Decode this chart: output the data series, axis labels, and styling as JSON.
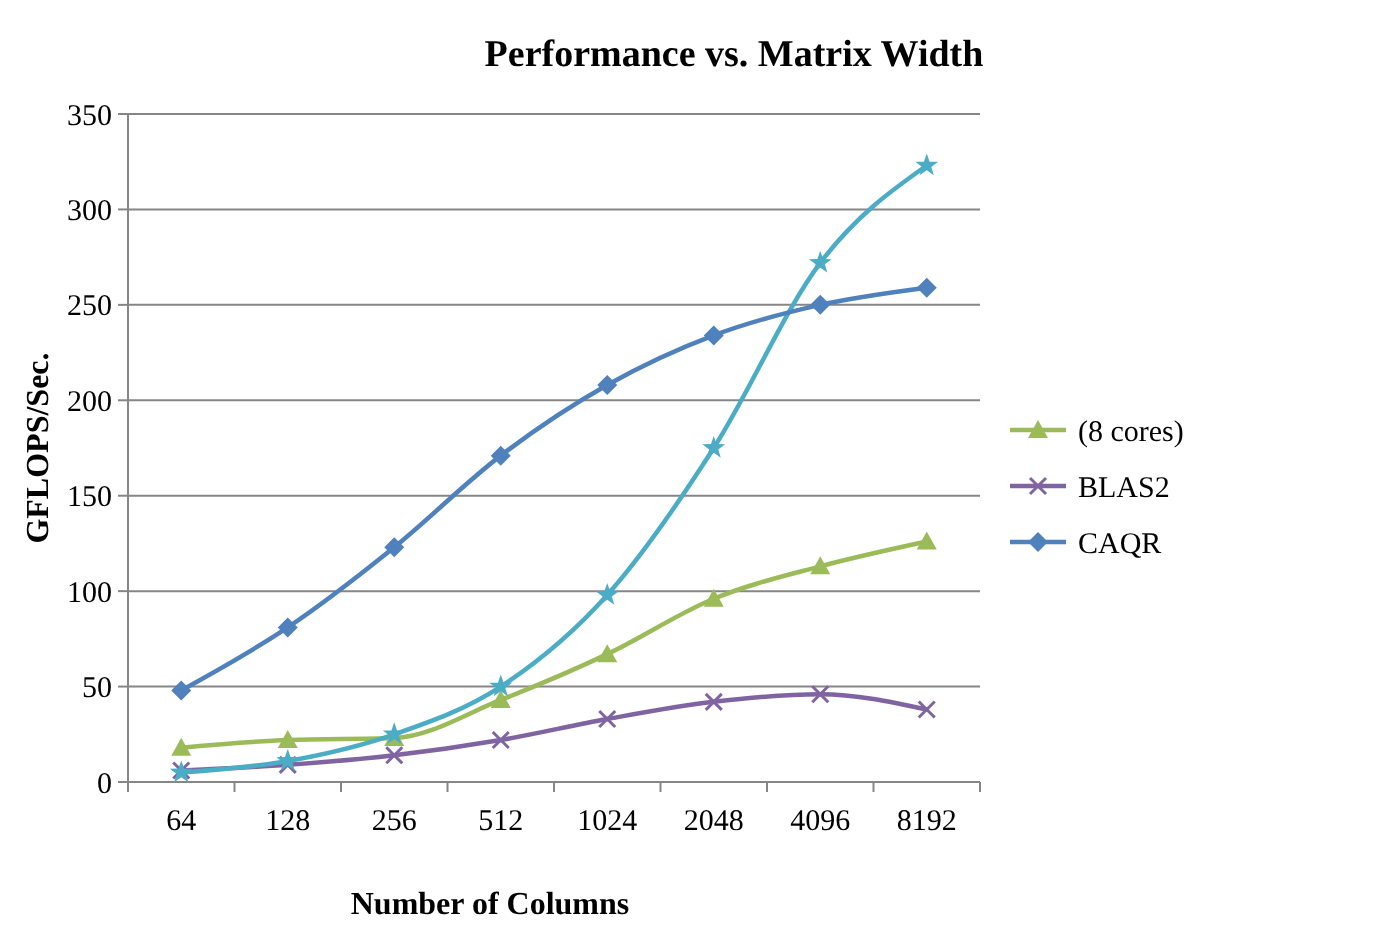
{
  "chart_data": {
    "type": "line",
    "title": "Performance vs. Matrix Width",
    "xlabel": "Number of Columns",
    "ylabel": "GFLOPS/Sec.",
    "categories": [
      "64",
      "128",
      "256",
      "512",
      "1024",
      "2048",
      "4096",
      "8192"
    ],
    "ylim": [
      0,
      350
    ],
    "yticks": [
      0,
      50,
      100,
      150,
      200,
      250,
      300,
      350
    ],
    "grid": "y",
    "legend": "right",
    "series": [
      {
        "name": "(8 cores)",
        "color": "#9bbb59",
        "marker": "triangle",
        "values": [
          18,
          22,
          23,
          43,
          67,
          96,
          113,
          126
        ]
      },
      {
        "name": "BLAS2",
        "color": "#8064a2",
        "marker": "cross",
        "values": [
          6,
          9,
          14,
          22,
          33,
          42,
          46,
          38
        ]
      },
      {
        "color": "#4bacc6",
        "marker": "star",
        "values": [
          5,
          11,
          25,
          50,
          98,
          175,
          272,
          323
        ]
      },
      {
        "name": "CAQR",
        "color": "#4f81bd",
        "marker": "diamond",
        "values": [
          48,
          81,
          123,
          171,
          208,
          234,
          250,
          259
        ]
      }
    ]
  }
}
